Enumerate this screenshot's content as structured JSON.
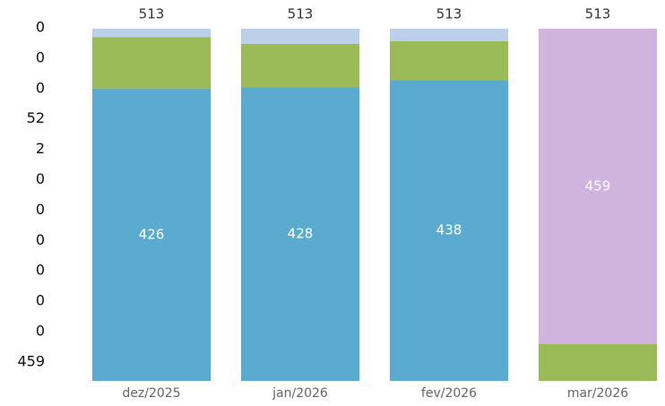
{
  "chart_data": {
    "type": "stacked-bar",
    "categories": [
      "dez/2025",
      "jan/2026",
      "fev/2026",
      "mar/2026"
    ],
    "totals": [
      513,
      513,
      513,
      513
    ],
    "series": [
      {
        "color": "#5aabcf",
        "values": [
          426,
          428,
          438,
          null
        ],
        "labeled": true
      },
      {
        "color": "#9bbb59",
        "values": [
          75,
          63,
          57,
          54
        ],
        "labeled": false
      },
      {
        "color": "#bdd0ea",
        "values": [
          12,
          22,
          18,
          null
        ],
        "labeled": false
      },
      {
        "color": "#d0b3df",
        "values": [
          null,
          null,
          null,
          459
        ],
        "labeled": true
      }
    ],
    "ylim": [
      0,
      513
    ]
  },
  "side_column": {
    "values": [
      0,
      0,
      0,
      52,
      2,
      0,
      0,
      0,
      0,
      0,
      0,
      459
    ]
  }
}
